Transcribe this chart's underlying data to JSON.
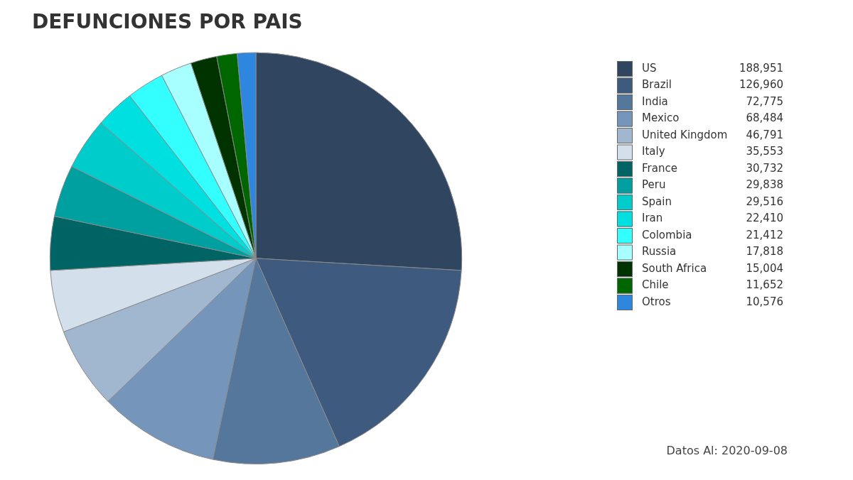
{
  "chart_data": {
    "type": "pie",
    "title": "DEFUNCIONES POR PAIS",
    "categories": [
      "US",
      "Brazil",
      "India",
      "Mexico",
      "United Kingdom",
      "Italy",
      "France",
      "Peru",
      "Spain",
      "Iran",
      "Colombia",
      "Russia",
      "South Africa",
      "Chile",
      "Otros"
    ],
    "values": [
      188951,
      126960,
      72775,
      68484,
      46791,
      35553,
      30732,
      29838,
      29516,
      22410,
      21412,
      17818,
      15004,
      11652,
      10576
    ],
    "colors": [
      "#2f4560",
      "#3e5a7e",
      "#56779c",
      "#7595ba",
      "#a1b6cf",
      "#d3dfeb",
      "#006464",
      "#00a0a0",
      "#00cccc",
      "#00e0e0",
      "#33ffff",
      "#a8ffff",
      "#003300",
      "#006600",
      "#2e86de"
    ],
    "value_labels": [
      "188,951",
      "126,960",
      "72,775",
      "68,484",
      "46,791",
      "35,553",
      "30,732",
      "29,838",
      "29,516",
      "22,410",
      "21,412",
      "17,818",
      "15,004",
      "11,652",
      "10,576"
    ],
    "legend": "top right",
    "annotations": [
      "Datos Al: 2020-09-08"
    ]
  }
}
